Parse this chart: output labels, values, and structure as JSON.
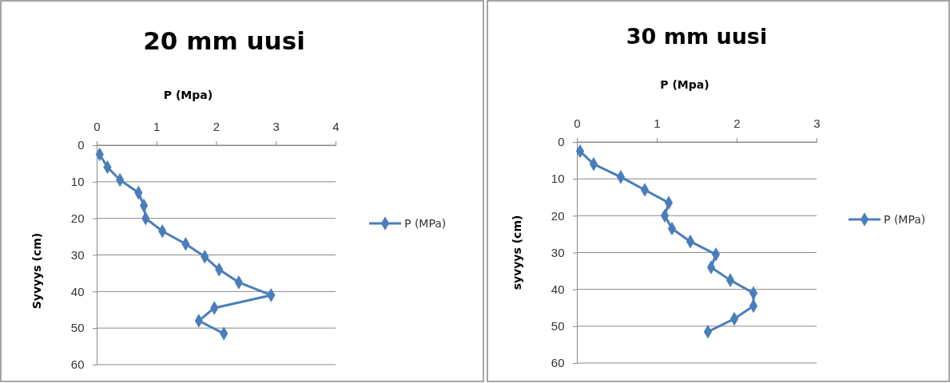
{
  "chart_data": [
    {
      "type": "line",
      "title": "20 mm uusi",
      "xlabel": "P (Mpa)",
      "ylabel": "Syvyys (cm)",
      "xlim": [
        0,
        4
      ],
      "xticks": [
        0,
        1,
        2,
        3,
        4
      ],
      "ylim": [
        60,
        0
      ],
      "yticks": [
        0,
        10,
        20,
        30,
        40,
        50,
        60
      ],
      "grid": "y",
      "legend": "right",
      "marker": "diamond",
      "line_style": "solid",
      "series": [
        {
          "name": "P (MPa)",
          "color": "#4a7ebb",
          "x": [
            0.05,
            0.18,
            0.39,
            0.7,
            0.79,
            0.82,
            1.1,
            1.49,
            1.81,
            2.05,
            2.38,
            2.92,
            1.97,
            1.71,
            2.13
          ],
          "values": [
            2.5,
            6,
            9.5,
            13,
            16.5,
            20,
            23.5,
            27,
            30.5,
            34,
            37.5,
            41,
            44.5,
            48,
            51.5
          ]
        }
      ]
    },
    {
      "type": "line",
      "title": "30 mm uusi",
      "xlabel": "P (Mpa)",
      "ylabel": "syvyys (cm)",
      "xlim": [
        0,
        3
      ],
      "xticks": [
        0,
        1,
        2,
        3
      ],
      "ylim": [
        60,
        0
      ],
      "yticks": [
        0,
        10,
        20,
        30,
        40,
        50,
        60
      ],
      "grid": "y",
      "legend": "right",
      "marker": "diamond",
      "line_style": "solid",
      "series": [
        {
          "name": "P (MPa)",
          "color": "#4a7ebb",
          "x": [
            0.04,
            0.21,
            0.55,
            0.85,
            1.15,
            1.1,
            1.19,
            1.42,
            1.74,
            1.68,
            1.92,
            2.21,
            2.21,
            1.97,
            1.64
          ],
          "values": [
            2.5,
            6,
            9.5,
            13,
            16.5,
            20,
            23.5,
            27,
            30.5,
            34,
            37.5,
            41,
            44.5,
            48,
            51.5
          ]
        }
      ]
    }
  ]
}
